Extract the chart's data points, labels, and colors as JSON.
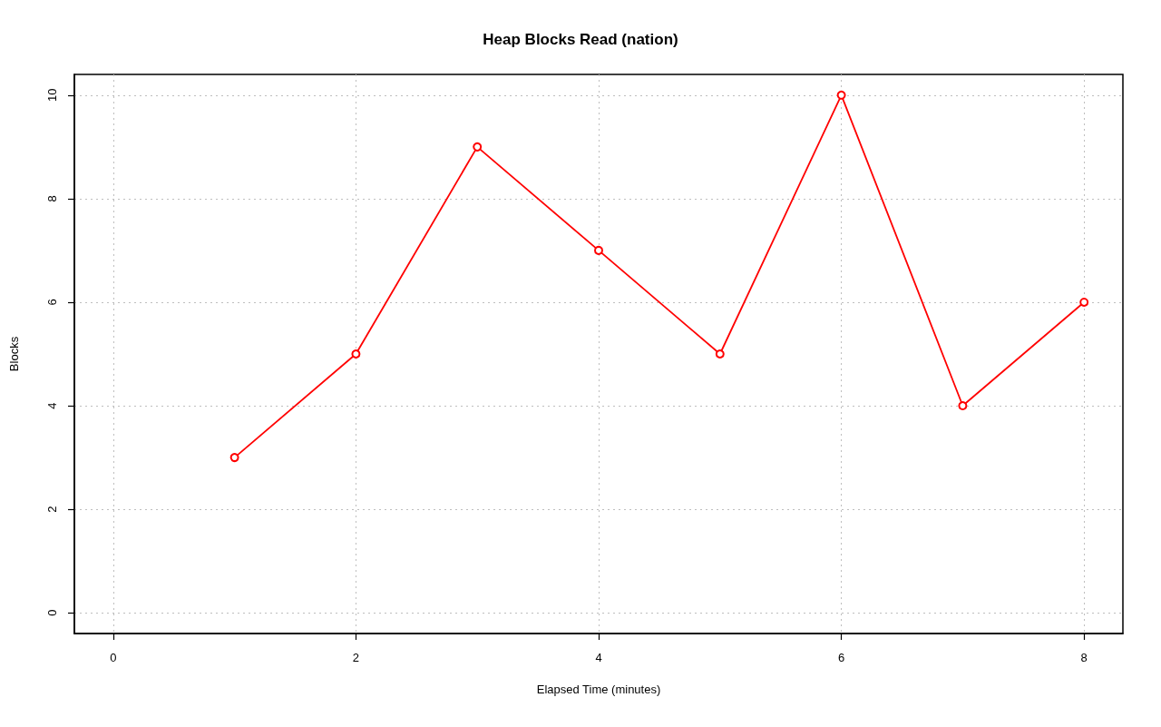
{
  "chart_data": {
    "type": "line",
    "title": "Heap Blocks Read (nation)",
    "xlabel": "Elapsed Time (minutes)",
    "ylabel": "Blocks",
    "x": [
      1,
      2,
      3,
      4,
      5,
      6,
      7,
      8
    ],
    "series": [
      {
        "color": "#ff0000",
        "values": [
          3,
          5,
          9,
          7,
          5,
          10,
          4,
          6
        ]
      }
    ],
    "xlim": [
      -0.32,
      8.32
    ],
    "ylim": [
      -0.4,
      10.4
    ],
    "xticks": [
      0,
      2,
      4,
      6,
      8
    ],
    "yticks": [
      0,
      2,
      4,
      6,
      8,
      10
    ],
    "grid": true,
    "marker": "circle",
    "line_style": "solid"
  }
}
